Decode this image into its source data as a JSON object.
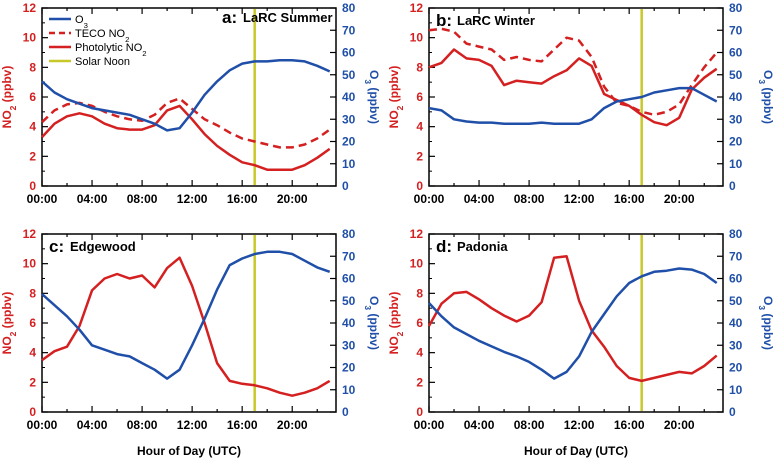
{
  "colors": {
    "o3": "#1f4fa8",
    "no2": "#d42020",
    "noon": "#c8c82a",
    "axis": "#000000"
  },
  "legend": {
    "o3": "O3",
    "teco": "TECO NO2",
    "photolytic": "Photolytic NO2",
    "noon": "Solar Noon"
  },
  "x_tick_labels": [
    "00:00",
    "04:00",
    "08:00",
    "12:00",
    "16:00",
    "20:00"
  ],
  "xlabel": "Hour of Day (UTC)",
  "ylabel_left": "NO2 (ppbv)",
  "ylabel_right": "O3 (ppbv)",
  "chart_data": [
    {
      "type": "line",
      "panel_label": "a:",
      "title": "LaRC Summer",
      "x": [
        0,
        1,
        2,
        3,
        4,
        5,
        6,
        7,
        8,
        9,
        10,
        11,
        12,
        13,
        14,
        15,
        16,
        17,
        18,
        19,
        20,
        21,
        22,
        23
      ],
      "left_axis": {
        "label": "NO2 (ppbv)",
        "ylim": [
          0,
          12
        ],
        "ticks": [
          0,
          2,
          4,
          6,
          8,
          10,
          12
        ]
      },
      "right_axis": {
        "label": "O3 (ppbv)",
        "ylim": [
          0,
          80
        ],
        "ticks": [
          0,
          10,
          20,
          30,
          40,
          50,
          60,
          70,
          80
        ]
      },
      "solar_noon_hour": 17,
      "series": [
        {
          "name": "Photolytic NO2",
          "axis": "left",
          "style": "solid",
          "values": [
            3.3,
            4.2,
            4.7,
            4.9,
            4.7,
            4.2,
            3.9,
            3.8,
            3.8,
            4.1,
            5.1,
            5.4,
            4.5,
            3.5,
            2.7,
            2.1,
            1.6,
            1.4,
            1.1,
            1.1,
            1.1,
            1.4,
            1.9,
            2.5
          ]
        },
        {
          "name": "TECO NO2",
          "axis": "left",
          "style": "dashed",
          "values": [
            4.3,
            5.1,
            5.5,
            5.6,
            5.4,
            5.0,
            4.7,
            4.5,
            4.4,
            4.8,
            5.6,
            5.9,
            5.2,
            4.5,
            4.1,
            3.6,
            3.2,
            3.0,
            2.8,
            2.6,
            2.6,
            2.8,
            3.2,
            3.8
          ]
        },
        {
          "name": "O3",
          "axis": "right",
          "style": "solid",
          "values": [
            47,
            42,
            39,
            37,
            35,
            34,
            33,
            32,
            30,
            28,
            25,
            26,
            33,
            41,
            47,
            52,
            55,
            56,
            56,
            56.5,
            56.5,
            56,
            54,
            51.5
          ]
        }
      ]
    },
    {
      "type": "line",
      "panel_label": "b:",
      "title": "LaRC Winter",
      "x": [
        0,
        1,
        2,
        3,
        4,
        5,
        6,
        7,
        8,
        9,
        10,
        11,
        12,
        13,
        14,
        15,
        16,
        17,
        18,
        19,
        20,
        21,
        22,
        23
      ],
      "left_axis": {
        "label": "NO2 (ppbv)",
        "ylim": [
          0,
          12
        ],
        "ticks": [
          0,
          2,
          4,
          6,
          8,
          10,
          12
        ]
      },
      "right_axis": {
        "label": "O3 (ppbv)",
        "ylim": [
          0,
          80
        ],
        "ticks": [
          0,
          10,
          20,
          30,
          40,
          50,
          60,
          70,
          80
        ]
      },
      "solar_noon_hour": 17,
      "series": [
        {
          "name": "Photolytic NO2",
          "axis": "left",
          "style": "solid",
          "values": [
            8.0,
            8.3,
            9.2,
            8.6,
            8.5,
            8.1,
            6.8,
            7.1,
            7.0,
            6.9,
            7.4,
            7.8,
            8.6,
            8.1,
            6.2,
            5.8,
            5.4,
            4.8,
            4.3,
            4.1,
            4.6,
            6.5,
            7.3,
            7.9
          ]
        },
        {
          "name": "TECO NO2",
          "axis": "left",
          "style": "dashed",
          "values": [
            10.5,
            10.6,
            10.4,
            9.6,
            9.4,
            9.2,
            8.5,
            8.7,
            8.5,
            8.4,
            9.2,
            10.0,
            9.8,
            8.7,
            6.7,
            5.6,
            5.4,
            5.0,
            4.8,
            5.0,
            5.5,
            6.8,
            8.0,
            9.0
          ]
        },
        {
          "name": "O3",
          "axis": "right",
          "style": "solid",
          "values": [
            35,
            34,
            30,
            29,
            28.5,
            28.5,
            28,
            28,
            28,
            28.5,
            28,
            28,
            28,
            30,
            35,
            38,
            39,
            40,
            42,
            43,
            44,
            44,
            41,
            38
          ]
        }
      ]
    },
    {
      "type": "line",
      "panel_label": "c:",
      "title": "Edgewood",
      "x": [
        0,
        1,
        2,
        3,
        4,
        5,
        6,
        7,
        8,
        9,
        10,
        11,
        12,
        13,
        14,
        15,
        16,
        17,
        18,
        19,
        20,
        21,
        22,
        23
      ],
      "left_axis": {
        "label": "NO2 (ppbv)",
        "ylim": [
          0,
          12
        ],
        "ticks": [
          0,
          2,
          4,
          6,
          8,
          10,
          12
        ]
      },
      "right_axis": {
        "label": "O3 (ppbv)",
        "ylim": [
          0,
          80
        ],
        "ticks": [
          0,
          10,
          20,
          30,
          40,
          50,
          60,
          70,
          80
        ]
      },
      "solar_noon_hour": 17,
      "series": [
        {
          "name": "Photolytic NO2",
          "axis": "left",
          "style": "solid",
          "values": [
            3.5,
            4.1,
            4.4,
            5.8,
            8.2,
            9.0,
            9.3,
            9.0,
            9.2,
            8.4,
            9.7,
            10.4,
            8.5,
            6.0,
            3.3,
            2.1,
            1.9,
            1.8,
            1.6,
            1.3,
            1.1,
            1.3,
            1.6,
            2.1
          ]
        },
        {
          "name": "O3",
          "axis": "right",
          "style": "solid",
          "values": [
            53,
            48,
            43,
            37,
            30,
            28,
            26,
            25,
            22,
            19,
            15,
            19,
            30,
            42,
            55,
            66,
            69,
            71,
            72,
            72,
            71,
            68,
            65,
            63
          ]
        }
      ]
    },
    {
      "type": "line",
      "panel_label": "d:",
      "title": "Padonia",
      "x": [
        0,
        1,
        2,
        3,
        4,
        5,
        6,
        7,
        8,
        9,
        10,
        11,
        12,
        13,
        14,
        15,
        16,
        17,
        18,
        19,
        20,
        21,
        22,
        23
      ],
      "left_axis": {
        "label": "NO2 (ppbv)",
        "ylim": [
          0,
          12
        ],
        "ticks": [
          0,
          2,
          4,
          6,
          8,
          10,
          12
        ]
      },
      "right_axis": {
        "label": "O3 (ppbv)",
        "ylim": [
          0,
          80
        ],
        "ticks": [
          0,
          10,
          20,
          30,
          40,
          50,
          60,
          70,
          80
        ]
      },
      "solar_noon_hour": 17,
      "series": [
        {
          "name": "Photolytic NO2",
          "axis": "left",
          "style": "solid",
          "values": [
            5.8,
            7.3,
            8.0,
            8.1,
            7.6,
            7.0,
            6.5,
            6.1,
            6.5,
            7.4,
            10.4,
            10.5,
            7.5,
            5.5,
            4.4,
            3.1,
            2.3,
            2.1,
            2.3,
            2.5,
            2.7,
            2.6,
            3.1,
            3.8
          ]
        },
        {
          "name": "O3",
          "axis": "right",
          "style": "solid",
          "values": [
            49,
            43,
            38,
            35,
            32,
            29.5,
            27,
            25,
            22.5,
            19,
            15,
            18,
            25,
            36,
            44,
            52,
            58,
            61,
            63,
            63.5,
            64.5,
            64,
            62,
            58
          ]
        }
      ]
    }
  ]
}
